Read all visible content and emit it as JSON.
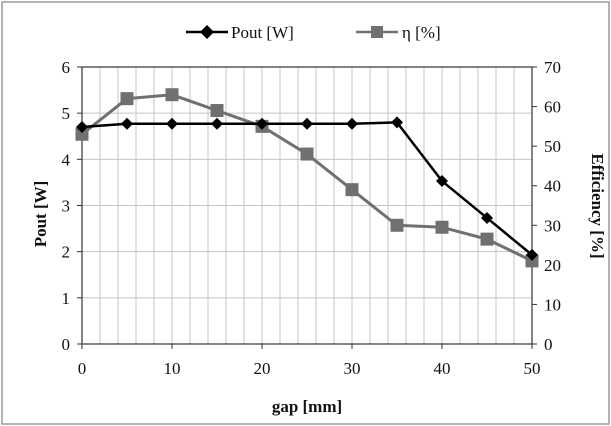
{
  "chart_data": {
    "type": "line",
    "title": "",
    "x": [
      0,
      5,
      10,
      15,
      20,
      25,
      30,
      35,
      40,
      45,
      50
    ],
    "xlabel": "gap [mm]",
    "xlim": [
      0,
      50
    ],
    "xticks": [
      "0",
      "10",
      "20",
      "30",
      "40",
      "50"
    ],
    "ylabel_left": "Pout [W]",
    "ylim_left": [
      0,
      6
    ],
    "yticks_left": [
      "0",
      "1",
      "2",
      "3",
      "4",
      "5",
      "6"
    ],
    "ylabel_right": "Efficiency [%]",
    "ylim_right": [
      0,
      70
    ],
    "yticks_right": [
      "0",
      "10",
      "20",
      "30",
      "40",
      "50",
      "60",
      "70"
    ],
    "grid": true,
    "legend_position": "top",
    "series": [
      {
        "name": "Pout [W]",
        "axis": "left",
        "marker": "diamond",
        "color": "#000000",
        "values": [
          4.7,
          4.77,
          4.77,
          4.77,
          4.77,
          4.77,
          4.77,
          4.8,
          3.53,
          2.73,
          1.93
        ]
      },
      {
        "name": "η [%]",
        "axis": "right",
        "marker": "square",
        "color": "#707070",
        "values": [
          53,
          62,
          63,
          59,
          55,
          48,
          39,
          30,
          29.5,
          26.5,
          21
        ]
      }
    ]
  }
}
